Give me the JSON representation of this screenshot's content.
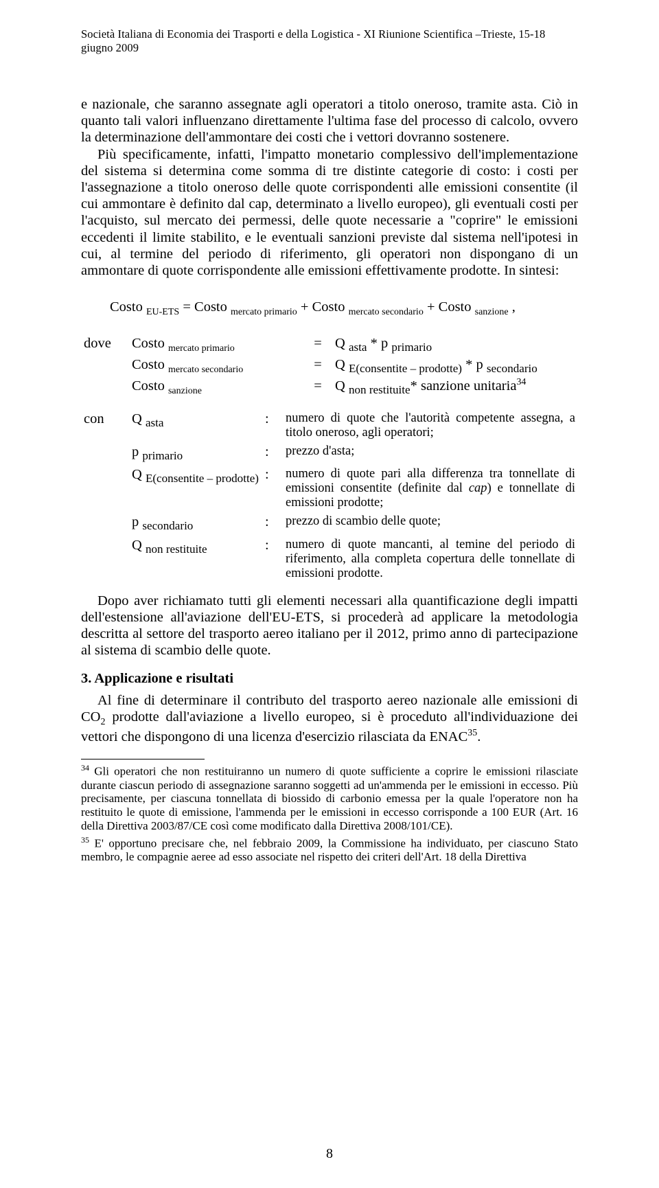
{
  "header": "Società Italiana di Economia dei Trasporti e della Logistica - XI Riunione Scientifica –Trieste, 15-18 giugno 2009",
  "para1": "e nazionale, che saranno assegnate agli operatori a titolo oneroso, tramite asta. Ciò in quanto tali valori influenzano direttamente l'ultima fase del processo di calcolo, ovvero la determinazione dell'ammontare dei costi che i vettori dovranno sostenere.",
  "para2_lead": "Più specificamente, infatti, l'impatto monetario complessivo dell'implementazione del sistema si determina come somma di tre distinte categorie di costo: i costi per l'assegnazione a titolo oneroso delle quote corrispondenti alle emissioni consentite (il cui ammontare è definito dal cap, determinato a livello europeo), gli eventuali costi per l'acquisto, sul mercato dei permessi, delle quote necessarie a \"coprire\" le emissioni eccedenti il limite stabilito, e le eventuali sanzioni previste dal sistema nell'ipotesi in cui, al termine del periodo di riferimento, gli operatori non dispongano di un ammontare di quote corrispondente alle emissioni effettivamente prodotte. In sintesi:",
  "formula": {
    "lhs_base": "Costo",
    "lhs_sub": "EU-ETS",
    "t1_base": "Costo",
    "t1_sub": "mercato primario",
    "t2_base": "Costo",
    "t2_sub": "mercato secondario",
    "t3_base": "Costo",
    "t3_sub": "sanzione",
    "tail": ","
  },
  "dove_label": "dove",
  "dove_rows": [
    {
      "s_base": "Costo",
      "s_sub": "mercato primario",
      "eq": "=",
      "r": "Q <sub>asta</sub> * p <sub>primario</sub>"
    },
    {
      "s_base": "Costo",
      "s_sub": "mercato secondario",
      "eq": "=",
      "r": "Q <sub>E(consentite – prodotte)</sub> * p <sub>secondario</sub>"
    },
    {
      "s_base": "Costo",
      "s_sub": "sanzione",
      "eq": "=",
      "r": "Q <sub>non restituite</sub>* sanzione unitaria<sup>34</sup>"
    }
  ],
  "con_label": "con",
  "con_rows": [
    {
      "sym": "Q <sub>asta</sub>",
      "desc": "numero di quote che l'autorità competente assegna, a titolo oneroso, agli operatori;"
    },
    {
      "sym": "p <sub>primario</sub>",
      "desc": "prezzo d'asta;"
    },
    {
      "sym": "Q <sub>E(consentite – prodotte)</sub>",
      "desc": "numero di quote pari alla differenza tra tonnellate di emissioni consentite (definite dal <i>cap</i>) e tonnellate di emissioni prodotte;"
    },
    {
      "sym": "p <sub>secondario</sub>",
      "desc": "prezzo di scambio delle quote;"
    },
    {
      "sym": "Q <sub>non restituite</sub>",
      "desc": "numero di quote mancanti, al temine del periodo di riferimento, alla completa copertura delle tonnellate di emissioni prodotte."
    }
  ],
  "para3": "Dopo aver richiamato tutti gli elementi necessari alla quantificazione degli impatti dell'estensione all'aviazione dell'EU-ETS, si procederà ad applicare la metodologia descritta al settore del trasporto aereo italiano per il 2012, primo anno di partecipazione al sistema di scambio delle quote.",
  "section3_title": "3. Applicazione e risultati",
  "para4_pre": "Al fine di determinare il contributo del trasporto aereo nazionale alle emissioni di CO",
  "para4_post": " prodotte dall'aviazione a livello europeo, si è proceduto all'individuazione dei vettori che dispongono di una licenza d'esercizio rilasciata da ENAC",
  "para4_tail": ".",
  "fn34_mark": "34",
  "fn34": "Gli operatori che non restituiranno un numero di quote sufficiente a coprire le emissioni rilasciate durante ciascun periodo di assegnazione saranno soggetti ad un'ammenda per le emissioni in eccesso. Più precisamente, per ciascuna tonnellata di biossido di carbonio emessa per la quale l'operatore non ha restituito le quote di emissione, l'ammenda per le emissioni in eccesso corrisponde a 100 EUR (Art. 16 della Direttiva 2003/87/CE così come modificato dalla Direttiva 2008/101/CE).",
  "fn35_mark": "35",
  "fn35": "E' opportuno precisare che, nel febbraio 2009, la Commissione ha individuato, per ciascuno Stato membro, le compagnie aeree ad esso associate nel rispetto dei criteri dell'Art. 18 della Direttiva",
  "page_number": "8"
}
